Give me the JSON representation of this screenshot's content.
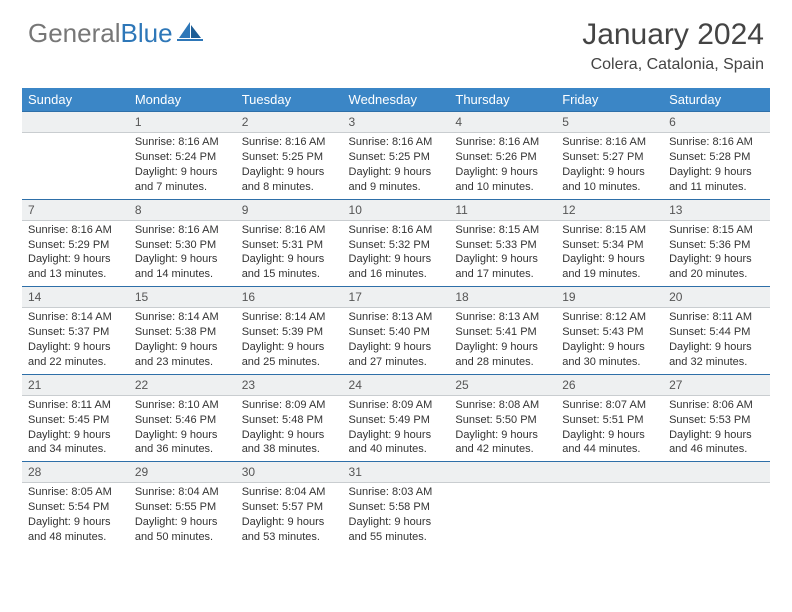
{
  "logo": {
    "text_gray": "General",
    "text_blue": "Blue"
  },
  "title": "January 2024",
  "location": "Colera, Catalonia, Spain",
  "colors": {
    "header_bg": "#3b86c6",
    "daybar_bg": "#eef0f1",
    "rule": "#2e6fa8",
    "text": "#333333"
  },
  "days_of_week": [
    "Sunday",
    "Monday",
    "Tuesday",
    "Wednesday",
    "Thursday",
    "Friday",
    "Saturday"
  ],
  "weeks": [
    [
      null,
      {
        "n": "1",
        "sr": "8:16 AM",
        "ss": "5:24 PM",
        "dl": "9 hours and 7 minutes."
      },
      {
        "n": "2",
        "sr": "8:16 AM",
        "ss": "5:25 PM",
        "dl": "9 hours and 8 minutes."
      },
      {
        "n": "3",
        "sr": "8:16 AM",
        "ss": "5:25 PM",
        "dl": "9 hours and 9 minutes."
      },
      {
        "n": "4",
        "sr": "8:16 AM",
        "ss": "5:26 PM",
        "dl": "9 hours and 10 minutes."
      },
      {
        "n": "5",
        "sr": "8:16 AM",
        "ss": "5:27 PM",
        "dl": "9 hours and 10 minutes."
      },
      {
        "n": "6",
        "sr": "8:16 AM",
        "ss": "5:28 PM",
        "dl": "9 hours and 11 minutes."
      }
    ],
    [
      {
        "n": "7",
        "sr": "8:16 AM",
        "ss": "5:29 PM",
        "dl": "9 hours and 13 minutes."
      },
      {
        "n": "8",
        "sr": "8:16 AM",
        "ss": "5:30 PM",
        "dl": "9 hours and 14 minutes."
      },
      {
        "n": "9",
        "sr": "8:16 AM",
        "ss": "5:31 PM",
        "dl": "9 hours and 15 minutes."
      },
      {
        "n": "10",
        "sr": "8:16 AM",
        "ss": "5:32 PM",
        "dl": "9 hours and 16 minutes."
      },
      {
        "n": "11",
        "sr": "8:15 AM",
        "ss": "5:33 PM",
        "dl": "9 hours and 17 minutes."
      },
      {
        "n": "12",
        "sr": "8:15 AM",
        "ss": "5:34 PM",
        "dl": "9 hours and 19 minutes."
      },
      {
        "n": "13",
        "sr": "8:15 AM",
        "ss": "5:36 PM",
        "dl": "9 hours and 20 minutes."
      }
    ],
    [
      {
        "n": "14",
        "sr": "8:14 AM",
        "ss": "5:37 PM",
        "dl": "9 hours and 22 minutes."
      },
      {
        "n": "15",
        "sr": "8:14 AM",
        "ss": "5:38 PM",
        "dl": "9 hours and 23 minutes."
      },
      {
        "n": "16",
        "sr": "8:14 AM",
        "ss": "5:39 PM",
        "dl": "9 hours and 25 minutes."
      },
      {
        "n": "17",
        "sr": "8:13 AM",
        "ss": "5:40 PM",
        "dl": "9 hours and 27 minutes."
      },
      {
        "n": "18",
        "sr": "8:13 AM",
        "ss": "5:41 PM",
        "dl": "9 hours and 28 minutes."
      },
      {
        "n": "19",
        "sr": "8:12 AM",
        "ss": "5:43 PM",
        "dl": "9 hours and 30 minutes."
      },
      {
        "n": "20",
        "sr": "8:11 AM",
        "ss": "5:44 PM",
        "dl": "9 hours and 32 minutes."
      }
    ],
    [
      {
        "n": "21",
        "sr": "8:11 AM",
        "ss": "5:45 PM",
        "dl": "9 hours and 34 minutes."
      },
      {
        "n": "22",
        "sr": "8:10 AM",
        "ss": "5:46 PM",
        "dl": "9 hours and 36 minutes."
      },
      {
        "n": "23",
        "sr": "8:09 AM",
        "ss": "5:48 PM",
        "dl": "9 hours and 38 minutes."
      },
      {
        "n": "24",
        "sr": "8:09 AM",
        "ss": "5:49 PM",
        "dl": "9 hours and 40 minutes."
      },
      {
        "n": "25",
        "sr": "8:08 AM",
        "ss": "5:50 PM",
        "dl": "9 hours and 42 minutes."
      },
      {
        "n": "26",
        "sr": "8:07 AM",
        "ss": "5:51 PM",
        "dl": "9 hours and 44 minutes."
      },
      {
        "n": "27",
        "sr": "8:06 AM",
        "ss": "5:53 PM",
        "dl": "9 hours and 46 minutes."
      }
    ],
    [
      {
        "n": "28",
        "sr": "8:05 AM",
        "ss": "5:54 PM",
        "dl": "9 hours and 48 minutes."
      },
      {
        "n": "29",
        "sr": "8:04 AM",
        "ss": "5:55 PM",
        "dl": "9 hours and 50 minutes."
      },
      {
        "n": "30",
        "sr": "8:04 AM",
        "ss": "5:57 PM",
        "dl": "9 hours and 53 minutes."
      },
      {
        "n": "31",
        "sr": "8:03 AM",
        "ss": "5:58 PM",
        "dl": "9 hours and 55 minutes."
      },
      null,
      null,
      null
    ]
  ],
  "labels": {
    "sunrise": "Sunrise:",
    "sunset": "Sunset:",
    "daylight": "Daylight:"
  }
}
